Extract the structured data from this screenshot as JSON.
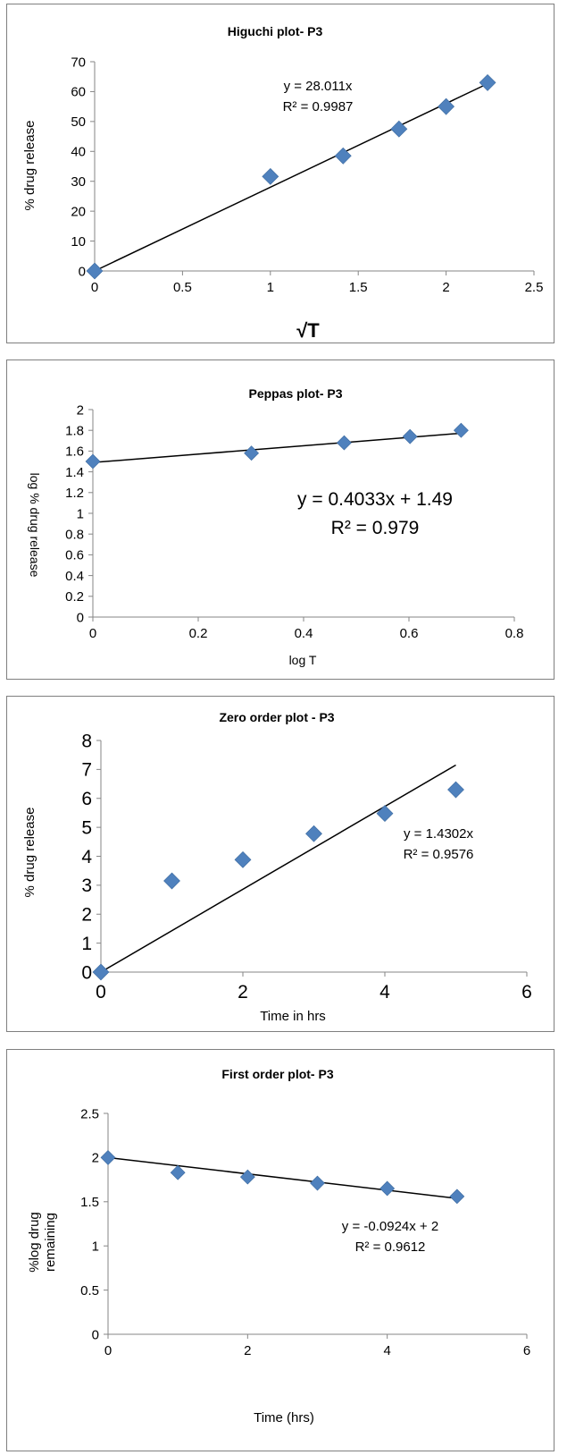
{
  "chart_data": [
    {
      "type": "scatter",
      "title": "Higuchi plot- P3",
      "xlabel": "√T",
      "ylabel": "% drug release",
      "xlim": [
        0,
        2.5
      ],
      "ylim": [
        0,
        70
      ],
      "x_ticks": [
        "0",
        "0.5",
        "1",
        "1.5",
        "2",
        "2.5"
      ],
      "y_ticks": [
        "0",
        "10",
        "20",
        "30",
        "40",
        "50",
        "60",
        "70"
      ],
      "series": [
        {
          "x": [
            0,
            1,
            1.414,
            1.732,
            2,
            2.236
          ],
          "y": [
            0,
            31.6,
            38.5,
            47.5,
            55,
            63
          ]
        }
      ],
      "trendline": {
        "slope": 28.011,
        "intercept": 0,
        "x_range": [
          0,
          2.236
        ]
      },
      "equation": "y = 28.011x",
      "r_squared": "R² = 0.9987",
      "marker_color": "#4f81bd",
      "line_color": "#000000"
    },
    {
      "type": "scatter",
      "title": "Peppas plot- P3",
      "xlabel": "log T",
      "ylabel": "log % drug release",
      "xlim": [
        0,
        0.8
      ],
      "ylim": [
        0,
        2
      ],
      "x_ticks": [
        "0",
        "0.2",
        "0.4",
        "0.6",
        "0.8"
      ],
      "y_ticks": [
        "0",
        "0.2",
        "0.4",
        "0.6",
        "0.8",
        "1",
        "1.2",
        "1.4",
        "1.6",
        "1.8",
        "2"
      ],
      "series": [
        {
          "x": [
            0,
            0.301,
            0.477,
            0.602,
            0.699
          ],
          "y": [
            1.5,
            1.58,
            1.68,
            1.74,
            1.8
          ]
        }
      ],
      "trendline": {
        "slope": 0.4033,
        "intercept": 1.49,
        "x_range": [
          0,
          0.699
        ]
      },
      "equation": "y = 0.4033x + 1.49",
      "r_squared": "R² = 0.979",
      "marker_color": "#4f81bd",
      "line_color": "#000000"
    },
    {
      "type": "scatter",
      "title": "Zero order plot - P3",
      "xlabel": "Time in hrs",
      "ylabel": "% drug release",
      "xlim": [
        0,
        6
      ],
      "ylim": [
        0,
        8
      ],
      "x_ticks": [
        "0",
        "2",
        "4",
        "6"
      ],
      "y_ticks": [
        "0",
        "1",
        "2",
        "3",
        "4",
        "5",
        "6",
        "7",
        "8"
      ],
      "series": [
        {
          "x": [
            0,
            1,
            2,
            3,
            4,
            5
          ],
          "y": [
            0,
            3.15,
            3.88,
            4.78,
            5.48,
            6.3
          ]
        }
      ],
      "trendline": {
        "slope": 1.4302,
        "intercept": 0,
        "x_range": [
          0,
          5
        ]
      },
      "equation": "y = 1.4302x",
      "r_squared": "R² = 0.9576",
      "marker_color": "#4f81bd",
      "line_color": "#000000"
    },
    {
      "type": "scatter",
      "title": "First order plot- P3",
      "xlabel": "Time (hrs)",
      "ylabel": "%log drug remaining",
      "ylabel_lines": [
        "%log drug",
        "remaining"
      ],
      "xlim": [
        0,
        6
      ],
      "ylim": [
        0,
        2.5
      ],
      "x_ticks": [
        "0",
        "2",
        "4",
        "6"
      ],
      "y_ticks": [
        "0",
        "0.5",
        "1",
        "1.5",
        "2",
        "2.5"
      ],
      "series": [
        {
          "x": [
            0,
            1,
            2,
            3,
            4,
            5
          ],
          "y": [
            2.0,
            1.83,
            1.78,
            1.71,
            1.65,
            1.56
          ]
        }
      ],
      "trendline": {
        "slope": -0.0924,
        "intercept": 2,
        "x_range": [
          0,
          5
        ]
      },
      "equation": "y = -0.0924x + 2",
      "r_squared": "R² = 0.9612",
      "marker_color": "#4f81bd",
      "line_color": "#000000"
    }
  ]
}
